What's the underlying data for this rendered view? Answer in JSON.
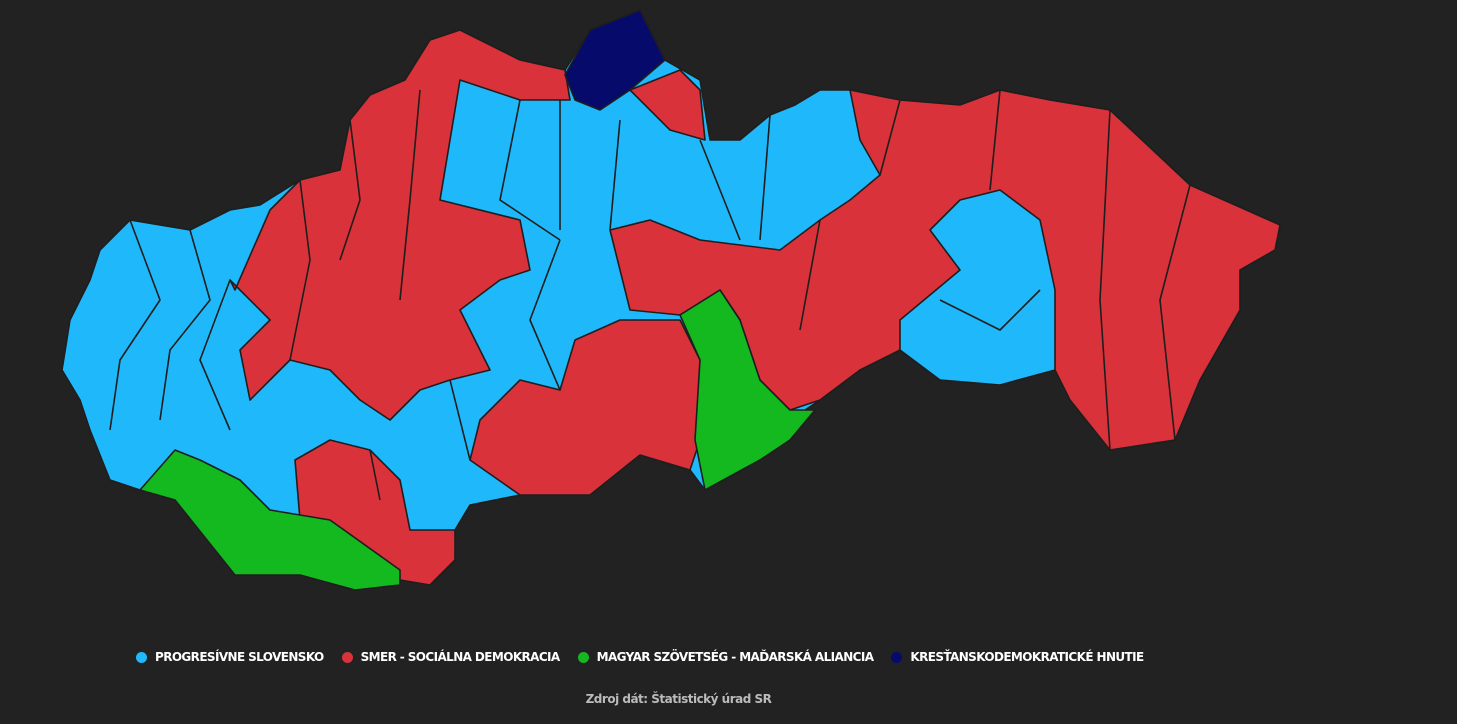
{
  "legend": [
    {
      "label": "PROGRESÍVNE SLOVENSKO",
      "color": "#1fb9fb"
    },
    {
      "label": "SMER - SOCIÁLNA DEMOKRACIA",
      "color": "#d9323a"
    },
    {
      "label": "MAGYAR SZÖVETSÉG - MAĎARSKÁ ALIANCIA",
      "color": "#14b81f"
    },
    {
      "label": "KRESŤANSKODEMOKRATICKÉ HNUTIE",
      "color": "#060a6a"
    }
  ],
  "source": "Zdroj dát: Štatistický úrad SR",
  "background": "#222222"
}
